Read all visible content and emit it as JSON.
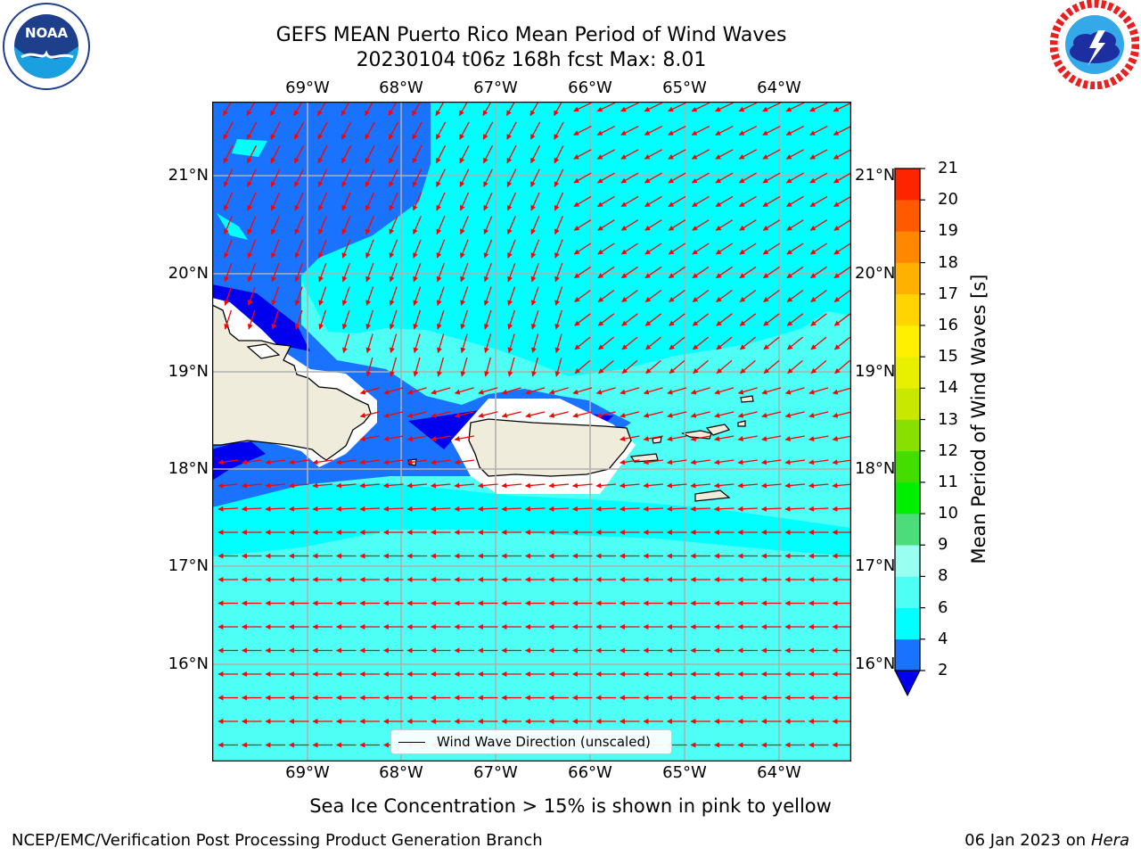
{
  "title_line1": "GEFS MEAN Puerto Rico Mean Period of Wind Waves",
  "title_line2": "20230104 t06z 168h fcst   Max: 8.01",
  "logos": {
    "left": "noaa-logo",
    "right": "national-weather-service-logo"
  },
  "map": {
    "lon_labels": [
      "69°W",
      "68°W",
      "67°W",
      "66°W",
      "65°W",
      "64°W"
    ],
    "lat_labels": [
      "21°N",
      "20°N",
      "19°N",
      "18°N",
      "17°N",
      "16°N"
    ],
    "legend_label": "Wind Wave Direction (unscaled)",
    "colors": {
      "land": "#efecdc",
      "arrow": "#ff0000",
      "grid": "#b0b0b0"
    }
  },
  "colorbar": {
    "label": "Mean Period of Wind Waves [s]",
    "ticks": [
      "2",
      "4",
      "6",
      "8",
      "9",
      "10",
      "11",
      "12",
      "13",
      "14",
      "15",
      "16",
      "17",
      "18",
      "19",
      "20",
      "21"
    ],
    "colors": [
      "#1a73ff",
      "#00ffff",
      "#4dfff5",
      "#99fff0",
      "#4ddc7a",
      "#00ee00",
      "#44dd00",
      "#88e000",
      "#c8e800",
      "#e8f000",
      "#fff000",
      "#ffd400",
      "#ffb000",
      "#ff8800",
      "#ff5a00",
      "#ff2400"
    ],
    "under_color": "#0000ee"
  },
  "caption": "Sea Ice Concentration > 15% is shown in pink to yellow",
  "footer_left": "NCEP/EMC/Verification Post Processing Product Generation Branch",
  "footer_right_prefix": "06 Jan 2023 on ",
  "footer_right_host": "Hera"
}
